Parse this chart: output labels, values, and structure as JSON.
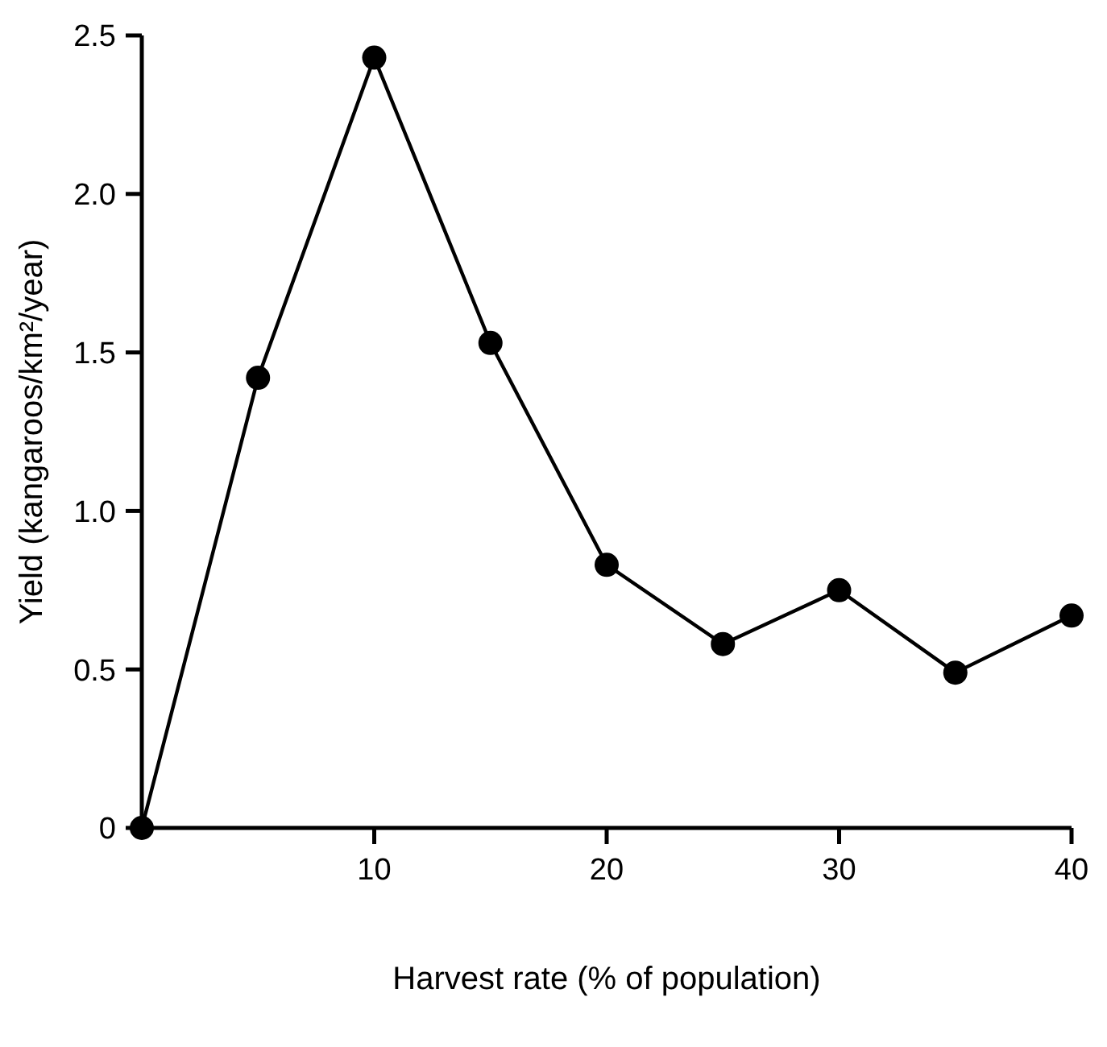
{
  "chart_data": {
    "type": "line",
    "xlabel": "Harvest rate (% of population)",
    "ylabel": "Yield (kangaroos/km²/year)",
    "x": [
      0,
      5,
      10,
      15,
      20,
      25,
      30,
      35,
      40
    ],
    "series": [
      {
        "color": "#000000",
        "values": [
          0,
          1.42,
          2.43,
          1.53,
          0.83,
          0.58,
          0.75,
          0.49,
          0.67
        ]
      }
    ],
    "xlim": [
      0,
      40
    ],
    "xticks": [
      10,
      20,
      30,
      40
    ],
    "ylim": [
      0,
      2.5
    ],
    "yticks": [
      0,
      {
        "value": 0.5,
        "label": "0.5"
      },
      {
        "value": 1,
        "label": "1.0"
      },
      {
        "value": 1.5,
        "label": "1.5"
      },
      {
        "value": 2,
        "label": "2.0"
      },
      {
        "value": 2.5,
        "label": "2.5"
      }
    ],
    "marker": "circle",
    "line_style": "solid"
  }
}
